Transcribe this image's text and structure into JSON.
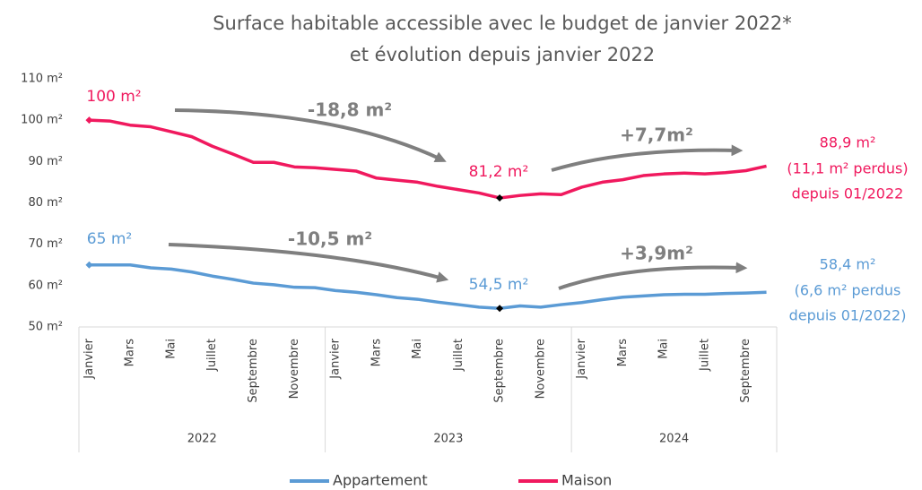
{
  "chart_data": {
    "type": "line",
    "title": [
      "Surface habitable accessible avec le budget de janvier 2022*",
      "et évolution depuis janvier 2022"
    ],
    "categories": [
      "Janvier",
      null,
      "Mars",
      null,
      "Mai",
      null,
      "Juillet",
      null,
      "Septembre",
      null,
      "Novembre",
      null,
      "Janvier",
      null,
      "Mars",
      null,
      "Mai",
      null,
      "Juillet",
      null,
      "Septembre",
      null,
      "Novembre",
      null,
      "Janvier",
      null,
      "Mars",
      null,
      "Mai",
      null,
      "Juillet",
      null,
      "Septembre",
      null
    ],
    "groups": [
      "2022",
      "2023",
      "2024"
    ],
    "series": [
      {
        "name": "Appartement",
        "color": "#5b9bd5",
        "values": [
          65,
          65,
          65,
          64.3,
          64,
          63.3,
          62.3,
          61.5,
          60.6,
          60.2,
          59.6,
          59.5,
          58.8,
          58.4,
          57.8,
          57.1,
          56.7,
          56,
          55.4,
          54.8,
          54.5,
          55.1,
          54.8,
          55.4,
          55.9,
          56.6,
          57.2,
          57.5,
          57.8,
          57.9,
          57.9,
          58.1,
          58.2,
          58.4
        ]
      },
      {
        "name": "Maison",
        "color": "#f0195e",
        "values": [
          100,
          99.8,
          98.8,
          98.4,
          97.2,
          96,
          93.7,
          91.8,
          89.8,
          89.8,
          88.7,
          88.5,
          88.1,
          87.7,
          86,
          85.5,
          85,
          84,
          83.2,
          82.4,
          81.2,
          81.8,
          82.2,
          82,
          83.8,
          85,
          85.6,
          86.6,
          87,
          87.2,
          87,
          87.3,
          87.8,
          88.9
        ]
      }
    ],
    "ylim": [
      50,
      110
    ],
    "yticks": [
      {
        "value": 50,
        "label": "50 m²"
      },
      {
        "value": 60,
        "label": "60 m²"
      },
      {
        "value": 70,
        "label": "70 m²"
      },
      {
        "value": 80,
        "label": "80 m²"
      },
      {
        "value": 90,
        "label": "90 m²"
      },
      {
        "value": 100,
        "label": "100 m²"
      },
      {
        "value": 110,
        "label": "110 m²"
      }
    ],
    "grid": false,
    "legend": "bottom",
    "annotations": [
      "100 m²",
      "-18,8 m²",
      "+7,7m²",
      "81,2 m²",
      "88,9 m²",
      "(11,1 m² perdus)",
      "depuis 01/2022",
      "65 m²",
      "-10,5 m²",
      "+3,9m²",
      "54,5 m²",
      "58,4 m²",
      "(6,6 m² perdus",
      "depuis 01/2022)"
    ]
  }
}
